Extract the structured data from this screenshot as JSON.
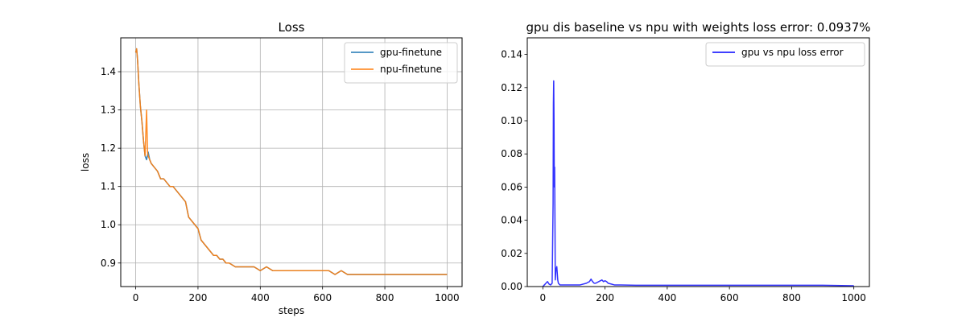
{
  "colors": {
    "gpu": "#1f77b4",
    "npu": "#ff7f0e",
    "error": "#0000ff",
    "grid": "#b0b0b0",
    "axes": "#000000",
    "legend_border": "#cccccc"
  },
  "chart_data": [
    {
      "type": "line",
      "title": "Loss",
      "xlabel": "steps",
      "ylabel": "loss",
      "xlim": [
        -48,
        1048
      ],
      "ylim": [
        0.8385,
        1.4885
      ],
      "xticks": [
        0,
        200,
        400,
        600,
        800,
        1000
      ],
      "yticks": [
        0.9,
        1.0,
        1.1,
        1.2,
        1.3,
        1.4
      ],
      "xtick_labels": [
        "0",
        "200",
        "400",
        "600",
        "800",
        "1000"
      ],
      "ytick_labels": [
        "0.9",
        "1.0",
        "1.1",
        "1.2",
        "1.3",
        "1.4"
      ],
      "grid": true,
      "legend": "upper right",
      "series": [
        {
          "name": "gpu-finetune",
          "color": "#1f77b4",
          "x": [
            0,
            3,
            6,
            10,
            15,
            20,
            25,
            30,
            35,
            40,
            45,
            50,
            60,
            70,
            80,
            90,
            100,
            110,
            120,
            130,
            140,
            150,
            160,
            170,
            180,
            190,
            200,
            210,
            220,
            230,
            240,
            250,
            260,
            270,
            280,
            290,
            300,
            320,
            340,
            360,
            380,
            400,
            420,
            440,
            460,
            480,
            500,
            520,
            540,
            560,
            580,
            600,
            620,
            640,
            660,
            680,
            700,
            720,
            740,
            760,
            780,
            800,
            820,
            840,
            860,
            880,
            900,
            920,
            940,
            960,
            980,
            1000
          ],
          "y": [
            1.45,
            1.46,
            1.43,
            1.37,
            1.31,
            1.27,
            1.22,
            1.18,
            1.17,
            1.19,
            1.17,
            1.16,
            1.15,
            1.14,
            1.12,
            1.12,
            1.11,
            1.1,
            1.1,
            1.09,
            1.08,
            1.07,
            1.06,
            1.02,
            1.01,
            1.0,
            0.99,
            0.96,
            0.95,
            0.94,
            0.93,
            0.92,
            0.92,
            0.91,
            0.91,
            0.9,
            0.9,
            0.89,
            0.89,
            0.89,
            0.89,
            0.88,
            0.89,
            0.88,
            0.88,
            0.88,
            0.88,
            0.88,
            0.88,
            0.88,
            0.88,
            0.88,
            0.88,
            0.87,
            0.88,
            0.87,
            0.87,
            0.87,
            0.87,
            0.87,
            0.87,
            0.87,
            0.87,
            0.87,
            0.87,
            0.87,
            0.87,
            0.87,
            0.87,
            0.87,
            0.87,
            0.87
          ]
        },
        {
          "name": "npu-finetune",
          "color": "#ff7f0e",
          "x": [
            0,
            3,
            6,
            10,
            15,
            20,
            25,
            30,
            35,
            38,
            40,
            45,
            50,
            60,
            70,
            80,
            90,
            100,
            110,
            120,
            130,
            140,
            150,
            160,
            170,
            180,
            190,
            200,
            210,
            220,
            230,
            240,
            250,
            260,
            270,
            280,
            290,
            300,
            320,
            340,
            360,
            380,
            400,
            420,
            440,
            460,
            480,
            500,
            520,
            540,
            560,
            580,
            600,
            620,
            640,
            660,
            680,
            700,
            720,
            740,
            760,
            780,
            800,
            820,
            840,
            860,
            880,
            900,
            920,
            940,
            960,
            980,
            1000
          ],
          "y": [
            1.45,
            1.46,
            1.43,
            1.37,
            1.31,
            1.27,
            1.22,
            1.18,
            1.3,
            1.19,
            1.18,
            1.17,
            1.16,
            1.15,
            1.14,
            1.12,
            1.12,
            1.11,
            1.1,
            1.1,
            1.09,
            1.08,
            1.07,
            1.06,
            1.02,
            1.01,
            1.0,
            0.99,
            0.96,
            0.95,
            0.94,
            0.93,
            0.92,
            0.92,
            0.91,
            0.91,
            0.9,
            0.9,
            0.89,
            0.89,
            0.89,
            0.89,
            0.88,
            0.89,
            0.88,
            0.88,
            0.88,
            0.88,
            0.88,
            0.88,
            0.88,
            0.88,
            0.88,
            0.88,
            0.87,
            0.88,
            0.87,
            0.87,
            0.87,
            0.87,
            0.87,
            0.87,
            0.87,
            0.87,
            0.87,
            0.87,
            0.87,
            0.87,
            0.87,
            0.87,
            0.87,
            0.87,
            0.87
          ]
        }
      ]
    },
    {
      "type": "line",
      "title": "gpu dis baseline vs npu with weights loss error: 0.0937%",
      "xlabel": "",
      "ylabel": "",
      "xlim": [
        -50,
        1050
      ],
      "ylim": [
        0,
        0.15
      ],
      "xticks": [
        0,
        200,
        400,
        600,
        800,
        1000
      ],
      "yticks": [
        0.0,
        0.02,
        0.04,
        0.06,
        0.08,
        0.1,
        0.12,
        0.14
      ],
      "xtick_labels": [
        "0",
        "200",
        "400",
        "600",
        "800",
        "1000"
      ],
      "ytick_labels": [
        "0.00",
        "0.02",
        "0.04",
        "0.06",
        "0.08",
        "0.10",
        "0.12",
        "0.14"
      ],
      "grid": false,
      "legend": "upper right",
      "series": [
        {
          "name": "gpu vs npu loss error",
          "color": "#0000ff",
          "x": [
            0,
            5,
            10,
            15,
            20,
            25,
            30,
            33,
            34,
            35,
            36,
            37,
            38,
            39,
            40,
            42,
            45,
            48,
            50,
            55,
            60,
            80,
            100,
            120,
            140,
            150,
            155,
            160,
            165,
            170,
            180,
            185,
            190,
            195,
            200,
            205,
            210,
            220,
            230,
            250,
            300,
            400,
            500,
            600,
            700,
            800,
            900,
            1000
          ],
          "y": [
            0.0,
            0.001,
            0.002,
            0.003,
            0.0015,
            0.001,
            0.002,
            0.05,
            0.11,
            0.124,
            0.1,
            0.06,
            0.072,
            0.04,
            0.004,
            0.01,
            0.012,
            0.004,
            0.002,
            0.001,
            0.001,
            0.001,
            0.001,
            0.001,
            0.002,
            0.003,
            0.0045,
            0.003,
            0.002,
            0.002,
            0.003,
            0.0035,
            0.004,
            0.003,
            0.0035,
            0.003,
            0.002,
            0.0015,
            0.001,
            0.001,
            0.0008,
            0.0008,
            0.0008,
            0.0008,
            0.0008,
            0.0008,
            0.0008,
            0.0005
          ]
        }
      ]
    }
  ]
}
